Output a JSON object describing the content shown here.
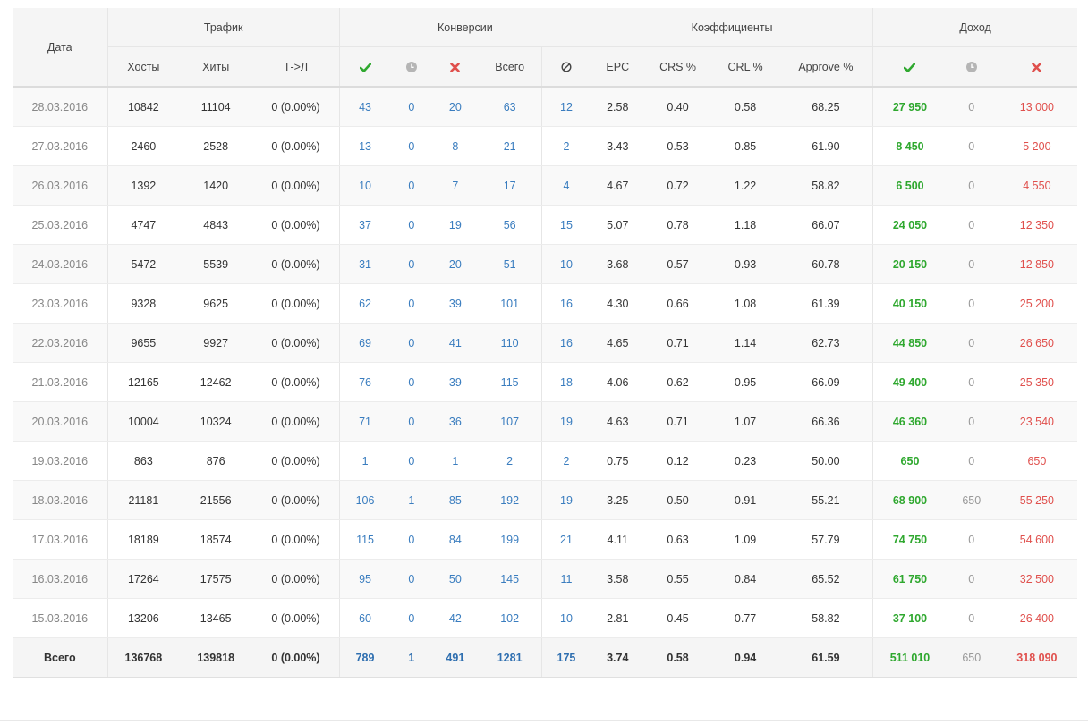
{
  "groups": {
    "date": "Дата",
    "traffic": "Трафик",
    "conversions": "Конверсии",
    "coefficients": "Коэффициенты",
    "income": "Доход"
  },
  "subheaders": {
    "hosts": "Хосты",
    "hits": "Хиты",
    "tl": "Т->Л",
    "total": "Всего",
    "epc": "EPC",
    "crs": "CRS %",
    "crl": "CRL %",
    "approve": "Approve %"
  },
  "icons": {
    "approved": "check-icon",
    "pending": "clock-icon",
    "rejected": "cross-icon",
    "trash": "ban-icon"
  },
  "colors": {
    "green": "#2fa82f",
    "red": "#e0504d",
    "blue": "#3a7dbf",
    "grey": "#999999"
  },
  "rows": [
    {
      "date": "28.03.2016",
      "hosts": "10842",
      "hits": "11104",
      "tl": "0 (0.00%)",
      "c_ok": "43",
      "c_wait": "0",
      "c_rej": "20",
      "c_total": "63",
      "c_trash": "12",
      "epc": "2.58",
      "crs": "0.40",
      "crl": "0.58",
      "approve": "68.25",
      "i_ok": "27 950",
      "i_wait": "0",
      "i_rej": "13 000"
    },
    {
      "date": "27.03.2016",
      "hosts": "2460",
      "hits": "2528",
      "tl": "0 (0.00%)",
      "c_ok": "13",
      "c_wait": "0",
      "c_rej": "8",
      "c_total": "21",
      "c_trash": "2",
      "epc": "3.43",
      "crs": "0.53",
      "crl": "0.85",
      "approve": "61.90",
      "i_ok": "8 450",
      "i_wait": "0",
      "i_rej": "5 200"
    },
    {
      "date": "26.03.2016",
      "hosts": "1392",
      "hits": "1420",
      "tl": "0 (0.00%)",
      "c_ok": "10",
      "c_wait": "0",
      "c_rej": "7",
      "c_total": "17",
      "c_trash": "4",
      "epc": "4.67",
      "crs": "0.72",
      "crl": "1.22",
      "approve": "58.82",
      "i_ok": "6 500",
      "i_wait": "0",
      "i_rej": "4 550"
    },
    {
      "date": "25.03.2016",
      "hosts": "4747",
      "hits": "4843",
      "tl": "0 (0.00%)",
      "c_ok": "37",
      "c_wait": "0",
      "c_rej": "19",
      "c_total": "56",
      "c_trash": "15",
      "epc": "5.07",
      "crs": "0.78",
      "crl": "1.18",
      "approve": "66.07",
      "i_ok": "24 050",
      "i_wait": "0",
      "i_rej": "12 350"
    },
    {
      "date": "24.03.2016",
      "hosts": "5472",
      "hits": "5539",
      "tl": "0 (0.00%)",
      "c_ok": "31",
      "c_wait": "0",
      "c_rej": "20",
      "c_total": "51",
      "c_trash": "10",
      "epc": "3.68",
      "crs": "0.57",
      "crl": "0.93",
      "approve": "60.78",
      "i_ok": "20 150",
      "i_wait": "0",
      "i_rej": "12 850"
    },
    {
      "date": "23.03.2016",
      "hosts": "9328",
      "hits": "9625",
      "tl": "0 (0.00%)",
      "c_ok": "62",
      "c_wait": "0",
      "c_rej": "39",
      "c_total": "101",
      "c_trash": "16",
      "epc": "4.30",
      "crs": "0.66",
      "crl": "1.08",
      "approve": "61.39",
      "i_ok": "40 150",
      "i_wait": "0",
      "i_rej": "25 200"
    },
    {
      "date": "22.03.2016",
      "hosts": "9655",
      "hits": "9927",
      "tl": "0 (0.00%)",
      "c_ok": "69",
      "c_wait": "0",
      "c_rej": "41",
      "c_total": "110",
      "c_trash": "16",
      "epc": "4.65",
      "crs": "0.71",
      "crl": "1.14",
      "approve": "62.73",
      "i_ok": "44 850",
      "i_wait": "0",
      "i_rej": "26 650"
    },
    {
      "date": "21.03.2016",
      "hosts": "12165",
      "hits": "12462",
      "tl": "0 (0.00%)",
      "c_ok": "76",
      "c_wait": "0",
      "c_rej": "39",
      "c_total": "115",
      "c_trash": "18",
      "epc": "4.06",
      "crs": "0.62",
      "crl": "0.95",
      "approve": "66.09",
      "i_ok": "49 400",
      "i_wait": "0",
      "i_rej": "25 350"
    },
    {
      "date": "20.03.2016",
      "hosts": "10004",
      "hits": "10324",
      "tl": "0 (0.00%)",
      "c_ok": "71",
      "c_wait": "0",
      "c_rej": "36",
      "c_total": "107",
      "c_trash": "19",
      "epc": "4.63",
      "crs": "0.71",
      "crl": "1.07",
      "approve": "66.36",
      "i_ok": "46 360",
      "i_wait": "0",
      "i_rej": "23 540"
    },
    {
      "date": "19.03.2016",
      "hosts": "863",
      "hits": "876",
      "tl": "0 (0.00%)",
      "c_ok": "1",
      "c_wait": "0",
      "c_rej": "1",
      "c_total": "2",
      "c_trash": "2",
      "epc": "0.75",
      "crs": "0.12",
      "crl": "0.23",
      "approve": "50.00",
      "i_ok": "650",
      "i_wait": "0",
      "i_rej": "650"
    },
    {
      "date": "18.03.2016",
      "hosts": "21181",
      "hits": "21556",
      "tl": "0 (0.00%)",
      "c_ok": "106",
      "c_wait": "1",
      "c_rej": "85",
      "c_total": "192",
      "c_trash": "19",
      "epc": "3.25",
      "crs": "0.50",
      "crl": "0.91",
      "approve": "55.21",
      "i_ok": "68 900",
      "i_wait": "650",
      "i_rej": "55 250"
    },
    {
      "date": "17.03.2016",
      "hosts": "18189",
      "hits": "18574",
      "tl": "0 (0.00%)",
      "c_ok": "115",
      "c_wait": "0",
      "c_rej": "84",
      "c_total": "199",
      "c_trash": "21",
      "epc": "4.11",
      "crs": "0.63",
      "crl": "1.09",
      "approve": "57.79",
      "i_ok": "74 750",
      "i_wait": "0",
      "i_rej": "54 600"
    },
    {
      "date": "16.03.2016",
      "hosts": "17264",
      "hits": "17575",
      "tl": "0 (0.00%)",
      "c_ok": "95",
      "c_wait": "0",
      "c_rej": "50",
      "c_total": "145",
      "c_trash": "11",
      "epc": "3.58",
      "crs": "0.55",
      "crl": "0.84",
      "approve": "65.52",
      "i_ok": "61 750",
      "i_wait": "0",
      "i_rej": "32 500"
    },
    {
      "date": "15.03.2016",
      "hosts": "13206",
      "hits": "13465",
      "tl": "0 (0.00%)",
      "c_ok": "60",
      "c_wait": "0",
      "c_rej": "42",
      "c_total": "102",
      "c_trash": "10",
      "epc": "2.81",
      "crs": "0.45",
      "crl": "0.77",
      "approve": "58.82",
      "i_ok": "37 100",
      "i_wait": "0",
      "i_rej": "26 400"
    }
  ],
  "totals": {
    "label": "Всего",
    "hosts": "136768",
    "hits": "139818",
    "tl": "0 (0.00%)",
    "c_ok": "789",
    "c_wait": "1",
    "c_rej": "491",
    "c_total": "1281",
    "c_trash": "175",
    "epc": "3.74",
    "crs": "0.58",
    "crl": "0.94",
    "approve": "61.59",
    "i_ok": "511 010",
    "i_wait": "650",
    "i_rej": "318 090"
  }
}
